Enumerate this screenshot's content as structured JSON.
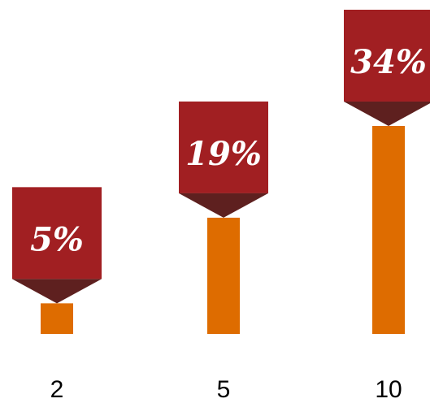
{
  "chart_data": {
    "type": "bar",
    "categories": [
      "2",
      "5",
      "10"
    ],
    "values": [
      5,
      19,
      34
    ],
    "value_labels": [
      "5%",
      "19%",
      "34%"
    ],
    "unit": "%",
    "title": "",
    "xlabel": "",
    "ylabel": "",
    "ylim": [
      0,
      40
    ],
    "grid": false,
    "legend": "none",
    "colors": {
      "bar": "#DE6C00",
      "callout": "#A11F22",
      "callout_point": "#5E201F",
      "label_text": "#FFFFFF",
      "tick_text": "#000000"
    }
  }
}
